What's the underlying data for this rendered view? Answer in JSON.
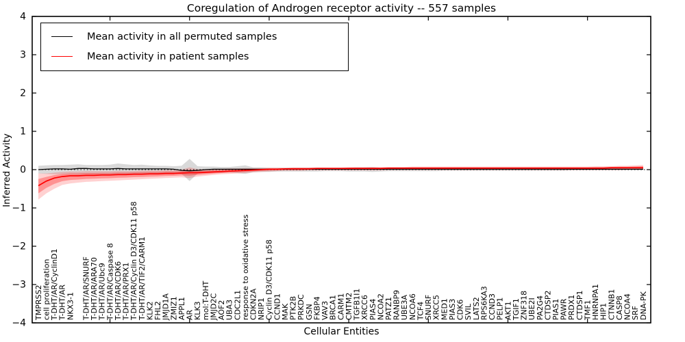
{
  "title": "Coregulation of Androgen receptor activity -- 557 samples",
  "chart_data": {
    "type": "line",
    "title": "Coregulation of Androgen receptor activity -- 557 samples",
    "xlabel": "Cellular Entities",
    "ylabel": "Inferred Activity",
    "ylim": [
      -4,
      4
    ],
    "yticks": [
      4,
      3,
      2,
      1,
      0,
      -1,
      -2,
      -3,
      -4
    ],
    "ytick_labels": [
      "4",
      "3",
      "2",
      "1",
      "0",
      "−1",
      "−2",
      "−3",
      "−4"
    ],
    "major_x_tick_indices": [
      9,
      19,
      29,
      39,
      49,
      59,
      69
    ],
    "zero_reference_line": 0,
    "grid": false,
    "legend_position": "upper left",
    "categories": [
      "TMPRSS2",
      "cell proliferation",
      "T-DHT/AR/CyclinD1",
      "T-DHT/AR",
      "NKX3-1",
      "",
      "T-DHT/AR/SNURF",
      "T-DHT/AR/ARA70",
      "T-DHT/AR/Ubc9",
      "T-DHT/AR/Caspase 8",
      "T-DHT/AR/CDK6",
      "T-DHT/AR/PRX1",
      "T-DHT/AR/Cyclin D3/CDK11 p58",
      "T-DHT/AR/TIF2/CARM1",
      "KLK2",
      "FHL2",
      "JMJD1A",
      "ZMIZ1",
      "APPL1",
      "AR",
      "KLK3",
      "mol:T-DHT",
      "JMJD2C",
      "AOF2",
      "UBA3",
      "CDC2L1",
      "response to oxidative stress",
      "CDKN2A",
      "NRIP1",
      "Cyclin D3/CDK11 p58",
      "CCND1",
      "MAK",
      "PTK2B",
      "PRKDC",
      "GSN",
      "FKBP4",
      "VAV3",
      "BRCA1",
      "CARM1",
      "CMTM2",
      "TGFB1I1",
      "XRCC6",
      "PIAS4",
      "NCOA2",
      "PATZ1",
      "RANBP9",
      "UBE3A",
      "NCOA6",
      "TCF4",
      "SNURF",
      "XRCC5",
      "MED1",
      "PIAS3",
      "CDK6",
      "SVIL",
      "LATS2",
      "RPS6KA3",
      "CCND3",
      "PELP1",
      "AKT1",
      "TGIF1",
      "ZNF318",
      "UBE2I",
      "PA2G4",
      "CTDSP2",
      "PIAS1",
      "PAWR",
      "PRDX1",
      "CTDSP1",
      "TMF1",
      "HNRNPA1",
      "HIP1",
      "CTNNB1",
      "CASP8",
      "NCOA4",
      "SRF",
      "DNA-PK"
    ],
    "series": [
      {
        "name": "Mean activity in all permuted samples",
        "color": "#000000",
        "band_color": "#888888",
        "values": [
          0.0,
          0.01,
          0.02,
          0.02,
          0.01,
          0.03,
          0.03,
          0.02,
          0.02,
          0.02,
          0.03,
          0.02,
          0.02,
          0.02,
          0.02,
          0.02,
          0.02,
          0.01,
          -0.02,
          -0.03,
          -0.02,
          0.0,
          0.01,
          0.01,
          0.01,
          0.01,
          0.01,
          0.01,
          0.01,
          0.01,
          0.01,
          0.01,
          0.01,
          0.01,
          0.01,
          0.01,
          0.01,
          0.01,
          0.01,
          0.01,
          0.01,
          0.01,
          0.01,
          0.01,
          0.01,
          0.01,
          0.01,
          0.01,
          0.01,
          0.01,
          0.01,
          0.01,
          0.01,
          0.01,
          0.01,
          0.01,
          0.01,
          0.01,
          0.01,
          0.01,
          0.01,
          0.01,
          0.01,
          0.01,
          0.01,
          0.01,
          0.01,
          0.01,
          0.01,
          0.01,
          0.01,
          0.01,
          0.01,
          0.01,
          0.01,
          0.01,
          0.01
        ],
        "band_lo": [
          -0.1,
          -0.11,
          -0.12,
          -0.12,
          -0.12,
          -0.13,
          -0.12,
          -0.12,
          -0.12,
          -0.12,
          -0.13,
          -0.12,
          -0.11,
          -0.13,
          -0.11,
          -0.1,
          -0.1,
          -0.1,
          -0.11,
          -0.3,
          -0.1,
          -0.09,
          -0.08,
          -0.08,
          -0.07,
          -0.09,
          -0.11,
          -0.07,
          -0.06,
          -0.06,
          -0.05,
          -0.05,
          -0.05,
          -0.05,
          -0.05,
          -0.05,
          -0.04,
          -0.04,
          -0.04,
          -0.05,
          -0.05,
          -0.05,
          -0.06,
          -0.05,
          -0.04,
          -0.04,
          -0.04,
          -0.04,
          -0.04,
          -0.04,
          -0.04,
          -0.03,
          -0.03,
          -0.03,
          -0.03,
          -0.03,
          -0.03,
          -0.03,
          -0.03,
          -0.03,
          -0.03,
          -0.03,
          -0.03,
          -0.03,
          -0.03,
          -0.03,
          -0.03,
          -0.02,
          -0.02,
          -0.02,
          -0.02,
          -0.02,
          -0.02,
          -0.02,
          -0.02,
          -0.02,
          -0.02
        ],
        "band_hi": [
          0.1,
          0.11,
          0.12,
          0.12,
          0.13,
          0.14,
          0.12,
          0.12,
          0.12,
          0.13,
          0.16,
          0.14,
          0.12,
          0.13,
          0.11,
          0.1,
          0.1,
          0.09,
          0.1,
          0.28,
          0.09,
          0.08,
          0.08,
          0.07,
          0.07,
          0.09,
          0.11,
          0.06,
          0.06,
          0.05,
          0.05,
          0.05,
          0.05,
          0.05,
          0.05,
          0.05,
          0.05,
          0.04,
          0.04,
          0.05,
          0.06,
          0.06,
          0.07,
          0.05,
          0.05,
          0.04,
          0.04,
          0.04,
          0.04,
          0.04,
          0.04,
          0.04,
          0.04,
          0.04,
          0.04,
          0.04,
          0.04,
          0.04,
          0.04,
          0.04,
          0.05,
          0.05,
          0.04,
          0.04,
          0.04,
          0.04,
          0.04,
          0.04,
          0.04,
          0.04,
          0.04,
          0.04,
          0.04,
          0.05,
          0.05,
          0.06,
          0.06
        ]
      },
      {
        "name": "Mean activity in patient samples",
        "color": "#ff0000",
        "band_color": "#ff0000",
        "values": [
          -0.42,
          -0.3,
          -0.22,
          -0.18,
          -0.16,
          -0.16,
          -0.15,
          -0.15,
          -0.14,
          -0.14,
          -0.13,
          -0.13,
          -0.12,
          -0.12,
          -0.11,
          -0.11,
          -0.1,
          -0.1,
          -0.09,
          -0.08,
          -0.08,
          -0.07,
          -0.06,
          -0.05,
          -0.04,
          -0.03,
          -0.02,
          -0.01,
          0.0,
          0.01,
          0.01,
          0.02,
          0.02,
          0.02,
          0.02,
          0.03,
          0.03,
          0.03,
          0.03,
          0.03,
          0.03,
          0.03,
          0.03,
          0.03,
          0.04,
          0.04,
          0.04,
          0.04,
          0.04,
          0.04,
          0.04,
          0.04,
          0.04,
          0.04,
          0.04,
          0.04,
          0.04,
          0.04,
          0.04,
          0.04,
          0.04,
          0.04,
          0.04,
          0.04,
          0.04,
          0.04,
          0.04,
          0.04,
          0.04,
          0.04,
          0.04,
          0.04,
          0.05,
          0.05,
          0.05,
          0.05,
          0.05
        ],
        "band_lo": [
          -0.78,
          -0.62,
          -0.5,
          -0.4,
          -0.36,
          -0.34,
          -0.32,
          -0.31,
          -0.3,
          -0.29,
          -0.28,
          -0.27,
          -0.26,
          -0.25,
          -0.24,
          -0.23,
          -0.22,
          -0.21,
          -0.2,
          -0.22,
          -0.18,
          -0.16,
          -0.14,
          -0.12,
          -0.11,
          -0.1,
          -0.09,
          -0.07,
          -0.06,
          -0.05,
          -0.04,
          -0.03,
          -0.03,
          -0.03,
          -0.02,
          -0.02,
          -0.02,
          -0.02,
          -0.02,
          -0.02,
          -0.02,
          -0.02,
          -0.02,
          -0.02,
          -0.01,
          -0.01,
          -0.01,
          -0.01,
          -0.01,
          -0.01,
          -0.01,
          -0.01,
          -0.01,
          -0.01,
          -0.01,
          -0.01,
          -0.01,
          -0.01,
          -0.01,
          -0.01,
          -0.01,
          -0.01,
          -0.01,
          -0.01,
          -0.01,
          -0.01,
          -0.01,
          -0.01,
          -0.01,
          -0.01,
          -0.01,
          -0.01,
          -0.01,
          -0.01,
          0.0,
          0.0,
          0.0
        ],
        "band_hi": [
          -0.1,
          -0.1,
          -0.08,
          -0.06,
          -0.05,
          -0.05,
          -0.04,
          -0.04,
          -0.04,
          -0.04,
          -0.03,
          -0.03,
          -0.03,
          -0.02,
          -0.02,
          -0.02,
          -0.01,
          -0.01,
          0.0,
          0.06,
          0.01,
          0.01,
          0.02,
          0.02,
          0.03,
          0.03,
          0.04,
          0.04,
          0.04,
          0.05,
          0.05,
          0.05,
          0.06,
          0.06,
          0.06,
          0.06,
          0.06,
          0.06,
          0.06,
          0.07,
          0.07,
          0.07,
          0.07,
          0.07,
          0.07,
          0.07,
          0.07,
          0.08,
          0.08,
          0.08,
          0.08,
          0.08,
          0.08,
          0.08,
          0.08,
          0.08,
          0.08,
          0.08,
          0.08,
          0.08,
          0.08,
          0.08,
          0.08,
          0.08,
          0.08,
          0.08,
          0.08,
          0.08,
          0.08,
          0.08,
          0.09,
          0.09,
          0.09,
          0.1,
          0.1,
          0.11,
          0.12
        ]
      }
    ]
  }
}
